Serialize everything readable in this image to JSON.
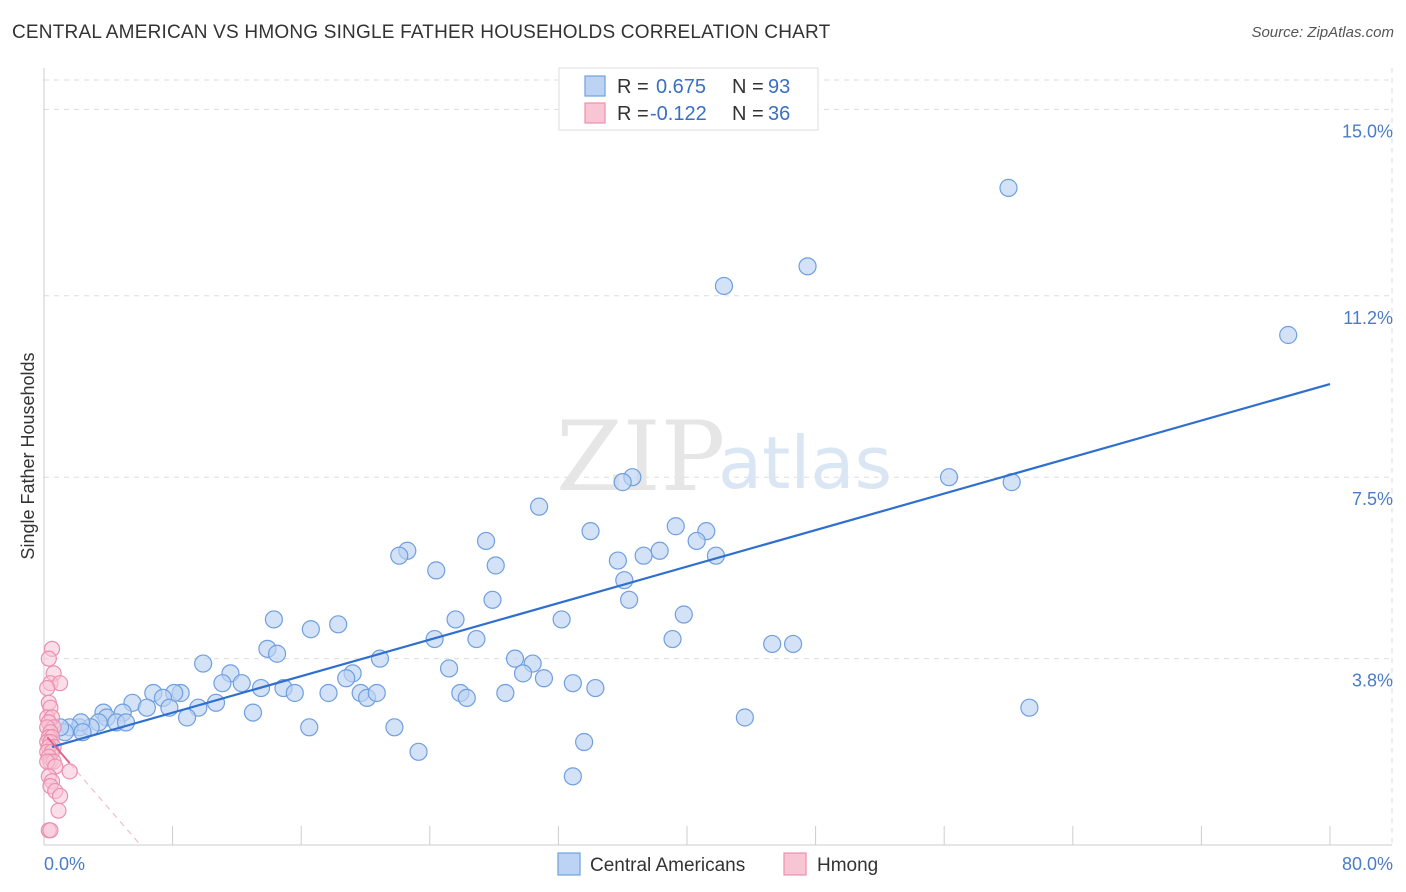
{
  "title": "CENTRAL AMERICAN VS HMONG SINGLE FATHER HOUSEHOLDS CORRELATION CHART",
  "source": "Source: ZipAtlas.com",
  "watermark": {
    "zip": "ZIP",
    "atlas": "atlas"
  },
  "colors": {
    "blue": "#6f9fe0",
    "blue_fill": "#bcd3f3",
    "blue_line": "#2f6fcf",
    "pink": "#ec8fae",
    "pink_fill": "#f8c5d5",
    "pink_line": "#e06690",
    "grid": "#dddddd",
    "axis_text": "#4a7cc7"
  },
  "legend": {
    "rows": [
      {
        "r_label": "R =",
        "r_value": "0.675",
        "n_label": "N =",
        "n_value": "93"
      },
      {
        "r_label": "R =",
        "r_value": "-0.122",
        "n_label": "N =",
        "n_value": "36"
      }
    ]
  },
  "chart_data": {
    "type": "scatter",
    "title": "CENTRAL AMERICAN VS HMONG SINGLE FATHER HOUSEHOLDS CORRELATION CHART",
    "xlabel": "",
    "ylabel": "Single Father Households",
    "xlim": [
      0,
      80
    ],
    "ylim": [
      0,
      15.6
    ],
    "x_tick_labels": [
      "0.0%",
      "80.0%"
    ],
    "y_ticks": [
      3.8,
      7.5,
      11.2,
      15.0
    ],
    "y_tick_labels": [
      "3.8%",
      "7.5%",
      "11.2%",
      "15.0%"
    ],
    "grid": true,
    "legend_position": "top-center",
    "series": [
      {
        "name": "Central Americans",
        "color": "#6f9fe0",
        "r": 0.675,
        "n": 93,
        "trend": {
          "x": [
            0.5,
            80
          ],
          "y": [
            2.0,
            9.4
          ]
        },
        "points": [
          [
            60,
            13.4
          ],
          [
            47.5,
            11.8
          ],
          [
            42.3,
            11.4
          ],
          [
            77.4,
            10.4
          ],
          [
            56.3,
            7.5
          ],
          [
            60.2,
            7.4
          ],
          [
            36.6,
            7.5
          ],
          [
            36,
            7.4
          ],
          [
            30.8,
            6.9
          ],
          [
            34,
            6.4
          ],
          [
            39.3,
            6.5
          ],
          [
            41.2,
            6.4
          ],
          [
            40.6,
            6.2
          ],
          [
            27.5,
            6.2
          ],
          [
            22.6,
            6.0
          ],
          [
            22.1,
            5.9
          ],
          [
            35.7,
            5.8
          ],
          [
            41.8,
            5.9
          ],
          [
            38.3,
            6.0
          ],
          [
            37.3,
            5.9
          ],
          [
            28.1,
            5.7
          ],
          [
            24.4,
            5.6
          ],
          [
            36.1,
            5.4
          ],
          [
            36.4,
            5.0
          ],
          [
            27.9,
            5.0
          ],
          [
            14.3,
            4.6
          ],
          [
            25.6,
            4.6
          ],
          [
            32.2,
            4.6
          ],
          [
            39.8,
            4.7
          ],
          [
            16.6,
            4.4
          ],
          [
            18.3,
            4.5
          ],
          [
            24.3,
            4.2
          ],
          [
            26.9,
            4.2
          ],
          [
            39.1,
            4.2
          ],
          [
            45.3,
            4.1
          ],
          [
            46.6,
            4.1
          ],
          [
            13.9,
            4.0
          ],
          [
            14.5,
            3.9
          ],
          [
            20.9,
            3.8
          ],
          [
            29.3,
            3.8
          ],
          [
            30.4,
            3.7
          ],
          [
            9.9,
            3.7
          ],
          [
            11.6,
            3.5
          ],
          [
            19.2,
            3.5
          ],
          [
            25.2,
            3.6
          ],
          [
            29.8,
            3.5
          ],
          [
            31.1,
            3.4
          ],
          [
            18.8,
            3.4
          ],
          [
            12.3,
            3.3
          ],
          [
            13.5,
            3.2
          ],
          [
            32.9,
            3.3
          ],
          [
            34.3,
            3.2
          ],
          [
            11.1,
            3.3
          ],
          [
            14.9,
            3.2
          ],
          [
            15.6,
            3.1
          ],
          [
            17.7,
            3.1
          ],
          [
            19.7,
            3.1
          ],
          [
            20.1,
            3.0
          ],
          [
            20.7,
            3.1
          ],
          [
            25.9,
            3.1
          ],
          [
            26.3,
            3.0
          ],
          [
            28.7,
            3.1
          ],
          [
            8.5,
            3.1
          ],
          [
            8.1,
            3.1
          ],
          [
            6.8,
            3.1
          ],
          [
            7.4,
            3.0
          ],
          [
            5.5,
            2.9
          ],
          [
            10.7,
            2.9
          ],
          [
            7.8,
            2.8
          ],
          [
            9.6,
            2.8
          ],
          [
            6.4,
            2.8
          ],
          [
            13,
            2.7
          ],
          [
            4.9,
            2.7
          ],
          [
            3.7,
            2.7
          ],
          [
            8.9,
            2.6
          ],
          [
            3.9,
            2.6
          ],
          [
            4.5,
            2.5
          ],
          [
            5.1,
            2.5
          ],
          [
            3.4,
            2.5
          ],
          [
            43.6,
            2.6
          ],
          [
            61.3,
            2.8
          ],
          [
            21.8,
            2.4
          ],
          [
            16.5,
            2.4
          ],
          [
            2.2,
            2.4
          ],
          [
            2.9,
            2.4
          ],
          [
            2.3,
            2.5
          ],
          [
            1.6,
            2.4
          ],
          [
            1.3,
            2.3
          ],
          [
            2.4,
            2.3
          ],
          [
            33.6,
            2.1
          ],
          [
            23.3,
            1.9
          ],
          [
            32.9,
            1.4
          ],
          [
            1.0,
            2.4
          ]
        ]
      },
      {
        "name": "Hmong",
        "color": "#ec8fae",
        "r": -0.122,
        "n": 36,
        "trend": {
          "x": [
            0.2,
            6
          ],
          "y": [
            2.2,
            0
          ]
        },
        "trend_solid_until_x": 1.6,
        "points": [
          [
            0.5,
            4.0
          ],
          [
            0.3,
            3.8
          ],
          [
            0.6,
            3.5
          ],
          [
            0.4,
            3.3
          ],
          [
            1.0,
            3.3
          ],
          [
            0.2,
            3.2
          ],
          [
            0.3,
            2.9
          ],
          [
            0.4,
            2.8
          ],
          [
            0.2,
            2.6
          ],
          [
            0.5,
            2.6
          ],
          [
            0.3,
            2.5
          ],
          [
            0.6,
            2.4
          ],
          [
            0.2,
            2.4
          ],
          [
            0.4,
            2.3
          ],
          [
            0.3,
            2.2
          ],
          [
            0.5,
            2.2
          ],
          [
            0.2,
            2.1
          ],
          [
            0.4,
            2.1
          ],
          [
            0.6,
            2.0
          ],
          [
            0.3,
            2.0
          ],
          [
            0.2,
            1.9
          ],
          [
            0.5,
            1.9
          ],
          [
            0.3,
            1.8
          ],
          [
            0.4,
            1.7
          ],
          [
            0.6,
            1.7
          ],
          [
            0.2,
            1.7
          ],
          [
            0.7,
            1.6
          ],
          [
            1.6,
            1.5
          ],
          [
            0.3,
            1.4
          ],
          [
            0.5,
            1.3
          ],
          [
            0.4,
            1.2
          ],
          [
            0.7,
            1.1
          ],
          [
            1.0,
            1.0
          ],
          [
            0.9,
            0.7
          ],
          [
            0.3,
            0.3
          ],
          [
            0.4,
            0.3
          ]
        ]
      }
    ]
  }
}
